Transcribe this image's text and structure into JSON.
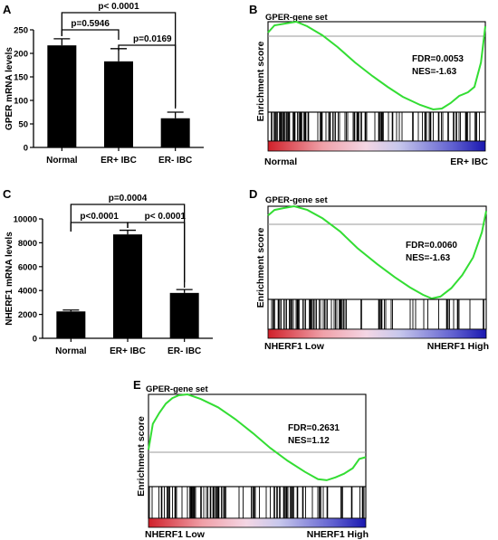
{
  "panels": {
    "A": {
      "letter": "A"
    },
    "B": {
      "letter": "B"
    },
    "C": {
      "letter": "C"
    },
    "D": {
      "letter": "D"
    },
    "E": {
      "letter": "E"
    }
  },
  "colors": {
    "bar": "#000000",
    "enrichment_line": "#33dd33",
    "gradient": [
      "#d0202a",
      "#f0a0a8",
      "#f4d6e4",
      "#c8c8ec",
      "#6060d0",
      "#1a18b0"
    ]
  },
  "chart_data": [
    {
      "panel": "A",
      "type": "bar",
      "ylabel": "GPER mRNA levels",
      "categories": [
        "Normal",
        "ER+ IBC",
        "ER- IBC"
      ],
      "values": [
        217,
        183,
        62
      ],
      "errors": [
        14,
        27,
        13
      ],
      "ylim": [
        0,
        250
      ],
      "yticks": [
        "0",
        "50",
        "100",
        "150",
        "200",
        "250"
      ],
      "annotations": [
        {
          "text": "p< 0.0001",
          "from": 0,
          "to": 2
        },
        {
          "text": "p=0.5946",
          "from": 0,
          "to": 1
        },
        {
          "text": "p=0.0169",
          "from": 1,
          "to": 2
        }
      ]
    },
    {
      "panel": "B",
      "type": "line",
      "title": "GPER-gene set",
      "ylabel": "Enrichment score",
      "stats": [
        "FDR=0.0053",
        "NES=-1.63"
      ],
      "left_label": "Normal",
      "right_label": "ER+ IBC"
    },
    {
      "panel": "C",
      "type": "bar",
      "ylabel": "NHERF1 mRNA levels",
      "categories": [
        "Normal",
        "ER+ IBC",
        "ER- IBC"
      ],
      "values": [
        2250,
        8700,
        3800
      ],
      "errors": [
        120,
        350,
        280
      ],
      "ylim": [
        0,
        10000
      ],
      "yticks": [
        "0",
        "2000",
        "4000",
        "6000",
        "8000",
        "10000"
      ],
      "annotations": [
        {
          "text": "p=0.0004",
          "from": 0,
          "to": 2
        },
        {
          "text": "p<0.0001",
          "from": 0,
          "to": 1
        },
        {
          "text": "p< 0.0001",
          "from": 1,
          "to": 2
        }
      ]
    },
    {
      "panel": "D",
      "type": "line",
      "title": "GPER-gene set",
      "ylabel": "Enrichment score",
      "stats": [
        "FDR=0.0060",
        "NES=-1.63"
      ],
      "left_label": "NHERF1 Low",
      "right_label": "NHERF1 High"
    },
    {
      "panel": "E",
      "type": "line",
      "title": "GPER-gene set",
      "ylabel": "Enrichment score",
      "stats": [
        "FDR=0.2631",
        "NES=1.12"
      ],
      "left_label": "NHERF1 Low",
      "right_label": "NHERF1 High"
    }
  ]
}
